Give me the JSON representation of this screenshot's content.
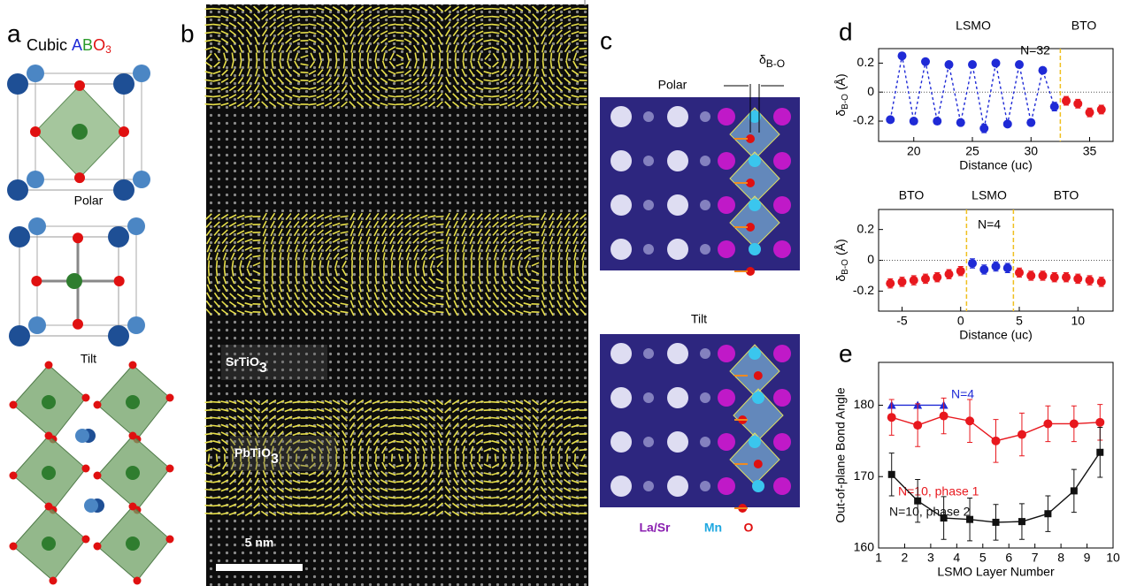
{
  "panels": {
    "a": {
      "label": "a",
      "cubic": {
        "word": "Cubic",
        "a": "A",
        "b": "B",
        "o": "O",
        "sub": "3"
      },
      "polar": "Polar",
      "tilt": "Tilt"
    },
    "b": {
      "label": "b",
      "layer1": {
        "main": "SrTiO",
        "sub": "3"
      },
      "layer2": {
        "main": "PbTiO",
        "sub": "3"
      },
      "scale_bar": "5 nm"
    },
    "c": {
      "label": "c",
      "polar": "Polar",
      "delta": {
        "main": "δ",
        "sub": "B-O"
      },
      "tilt": "Tilt",
      "legend": [
        "La/Sr",
        "Mn",
        "O"
      ]
    },
    "d": {
      "label": "d"
    },
    "e": {
      "label": "e"
    }
  },
  "chart_data": [
    {
      "type": "line",
      "xlabel": "Distance (uc)",
      "ylabel": {
        "main": "δ",
        "sub": "B-O",
        "unit": "(Å)"
      },
      "xlim": [
        17,
        37
      ],
      "ylim": [
        -0.34,
        0.3
      ],
      "xticks": [
        20,
        25,
        30,
        35
      ],
      "yticks": [
        -0.2,
        0.0,
        0.2
      ],
      "hline": 0,
      "vlines": [
        32.5
      ],
      "vline_color": "#f0c020",
      "annotations": [
        {
          "text": "LSMO",
          "color": "#000000"
        },
        {
          "text": "BTO",
          "color": "#000000"
        },
        {
          "text": "N=32",
          "color": "#000000"
        }
      ],
      "series": [
        {
          "color": "#1f2ad6",
          "marker": "circle",
          "line": "dashed",
          "x": [
            18,
            19,
            20,
            21,
            22,
            23,
            24,
            25,
            26,
            27,
            28,
            29,
            30,
            31,
            32
          ],
          "values": [
            -0.19,
            0.25,
            -0.2,
            0.21,
            -0.2,
            0.19,
            -0.21,
            0.19,
            -0.25,
            0.2,
            -0.22,
            0.19,
            -0.21,
            0.15,
            -0.1
          ],
          "errors": [
            0.02,
            0.02,
            0.02,
            0.02,
            0.02,
            0.02,
            0.02,
            0.02,
            0.03,
            0.02,
            0.02,
            0.02,
            0.02,
            0.02,
            0.03
          ]
        },
        {
          "color": "#e8181e",
          "marker": "circle",
          "line": "none",
          "x": [
            33,
            34,
            35,
            36
          ],
          "values": [
            -0.06,
            -0.08,
            -0.14,
            -0.12
          ],
          "errors": [
            0.03,
            0.03,
            0.03,
            0.03
          ]
        }
      ]
    },
    {
      "type": "line",
      "xlabel": "Distance (uc)",
      "ylabel": {
        "main": "δ",
        "sub": "B-O",
        "unit": "(Å)"
      },
      "xlim": [
        -7,
        13
      ],
      "ylim": [
        -0.33,
        0.33
      ],
      "xticks": [
        -5,
        0,
        5,
        10
      ],
      "yticks": [
        -0.2,
        0.0,
        0.2
      ],
      "hline": 0,
      "vlines": [
        0.5,
        4.5
      ],
      "vline_color": "#f0c020",
      "annotations": [
        {
          "text": "BTO",
          "color": "#000000"
        },
        {
          "text": "LSMO",
          "color": "#000000"
        },
        {
          "text": "BTO",
          "color": "#000000"
        },
        {
          "text": "N=4",
          "color": "#000000"
        }
      ],
      "series": [
        {
          "color": "#e8181e",
          "marker": "circle",
          "line": "none",
          "x": [
            -6,
            -5,
            -4,
            -3,
            -2,
            -1,
            0,
            5,
            6,
            7,
            8,
            9,
            10,
            11,
            12
          ],
          "values": [
            -0.15,
            -0.14,
            -0.13,
            -0.12,
            -0.11,
            -0.09,
            -0.07,
            -0.08,
            -0.1,
            -0.1,
            -0.11,
            -0.11,
            -0.12,
            -0.13,
            -0.14
          ],
          "errors": [
            0.03,
            0.03,
            0.03,
            0.03,
            0.03,
            0.03,
            0.03,
            0.03,
            0.03,
            0.03,
            0.03,
            0.03,
            0.03,
            0.03,
            0.03
          ]
        },
        {
          "color": "#1f2ad6",
          "marker": "circle",
          "line": "none",
          "x": [
            1,
            2,
            3,
            4
          ],
          "values": [
            -0.02,
            -0.06,
            -0.04,
            -0.05
          ],
          "errors": [
            0.03,
            0.03,
            0.03,
            0.03
          ]
        }
      ]
    },
    {
      "type": "line",
      "xlabel": "LSMO Layer Number",
      "ylabel": "Out-of-plane Bond Angle",
      "xlim": [
        1,
        10
      ],
      "ylim": [
        160,
        186
      ],
      "xticks": [
        1,
        2,
        3,
        4,
        5,
        6,
        7,
        8,
        9,
        10
      ],
      "yticks": [
        160,
        170,
        180
      ],
      "series": [
        {
          "name": "N=4",
          "color": "#1f2ad6",
          "marker": "triangle",
          "line": "solid",
          "x": [
            1.5,
            2.5,
            3.5
          ],
          "values": [
            180,
            180,
            180
          ]
        },
        {
          "name": "N=10, phase 1",
          "color": "#e8181e",
          "marker": "circle",
          "line": "solid",
          "x": [
            1.5,
            2.5,
            3.5,
            4.5,
            5.5,
            6.5,
            7.5,
            8.5,
            9.5
          ],
          "values": [
            178.3,
            177.2,
            178.5,
            177.8,
            175,
            175.9,
            177.4,
            177.4,
            177.6
          ],
          "errors": [
            2.5,
            3,
            2.5,
            3,
            3,
            3,
            2.5,
            2.5,
            2.5
          ]
        },
        {
          "name": "N=10, phase 2",
          "color": "#111111",
          "marker": "square",
          "line": "solid",
          "x": [
            1.5,
            2.5,
            3.5,
            4.5,
            5.5,
            6.5,
            7.5,
            8.5,
            9.5
          ],
          "values": [
            170.3,
            166.6,
            164.2,
            164,
            163.6,
            163.7,
            164.8,
            168,
            173.4
          ],
          "errors": [
            3,
            3,
            3,
            3,
            2.5,
            2.5,
            2.5,
            3,
            3.5
          ]
        }
      ]
    }
  ]
}
